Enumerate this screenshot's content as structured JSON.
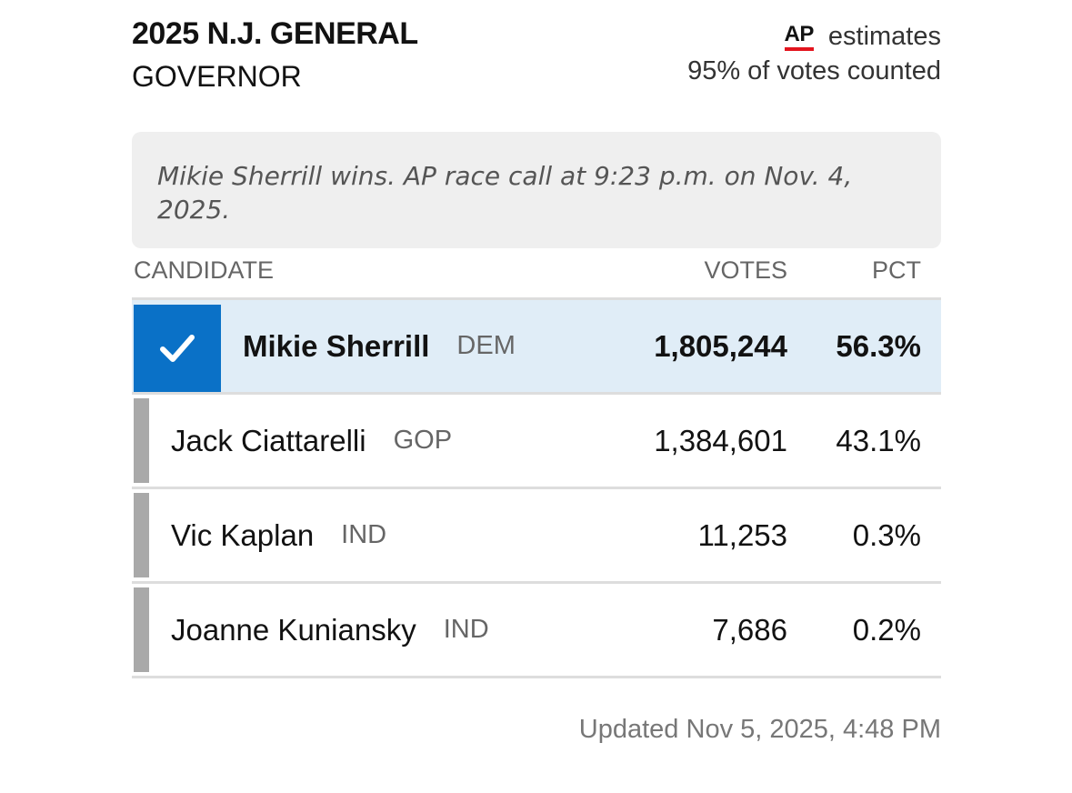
{
  "header": {
    "title": "2025 N.J. GENERAL",
    "office": "GOVERNOR",
    "ap_logo": "AP",
    "estimates_label": "estimates",
    "counted_text": "95% of votes counted"
  },
  "race_call": {
    "text": "Mikie Sherrill wins. AP race call at 9:23 p.m. on Nov. 4, 2025."
  },
  "columns": {
    "candidate": "CANDIDATE",
    "votes": "VOTES",
    "pct": "PCT"
  },
  "candidates": [
    {
      "name": "Mikie Sherrill",
      "party": "DEM",
      "votes": "1,805,244",
      "pct": "56.3%",
      "winner": true
    },
    {
      "name": "Jack Ciattarelli",
      "party": "GOP",
      "votes": "1,384,601",
      "pct": "43.1%",
      "winner": false
    },
    {
      "name": "Vic Kaplan",
      "party": "IND",
      "votes": "11,253",
      "pct": "0.3%",
      "winner": false
    },
    {
      "name": "Joanne Kuniansky",
      "party": "IND",
      "votes": "7,686",
      "pct": "0.2%",
      "winner": false
    }
  ],
  "footer": {
    "updated": "Updated  Nov 5, 2025, 4:48 PM"
  },
  "colors": {
    "winner_accent": "#0a71c7",
    "winner_row_bg": "#e0edf7",
    "loser_bar": "#a9a9a9",
    "ap_underline": "#e3141e"
  },
  "icons": {
    "winner": "checkmark-icon"
  }
}
